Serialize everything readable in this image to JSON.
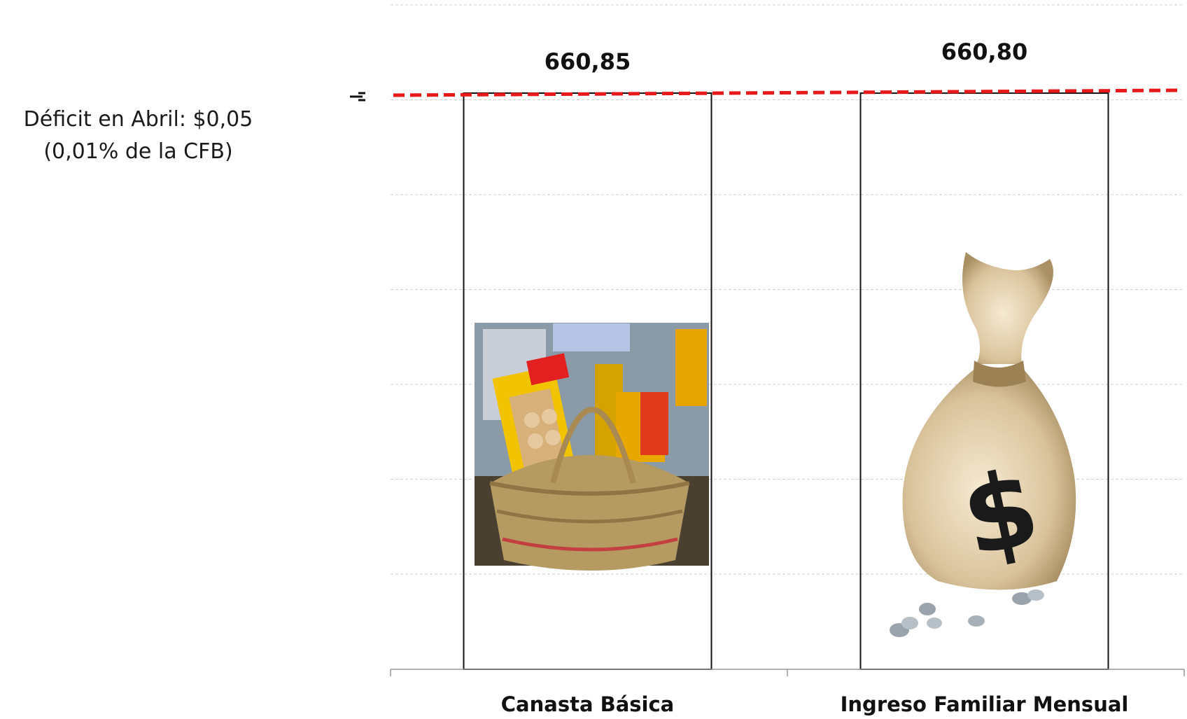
{
  "annotation": {
    "line1": "Déficit en Abril: $0,05",
    "line2": "(0,01% de la CFB)"
  },
  "chart_data": {
    "type": "bar",
    "categories": [
      "Canasta Básica",
      "Ingreso Familiar Mensual"
    ],
    "values": [
      660.85,
      660.8
    ],
    "value_labels": [
      "660,85",
      "660,80"
    ],
    "reference_line": {
      "value": 660.85
    },
    "grid": true,
    "legend": "none",
    "bar_images": [
      "food-basket",
      "money-bag"
    ],
    "colors": {
      "reference_line": "#e8191b",
      "bar_border": "#111111",
      "grid": "#d0d0d0"
    }
  }
}
